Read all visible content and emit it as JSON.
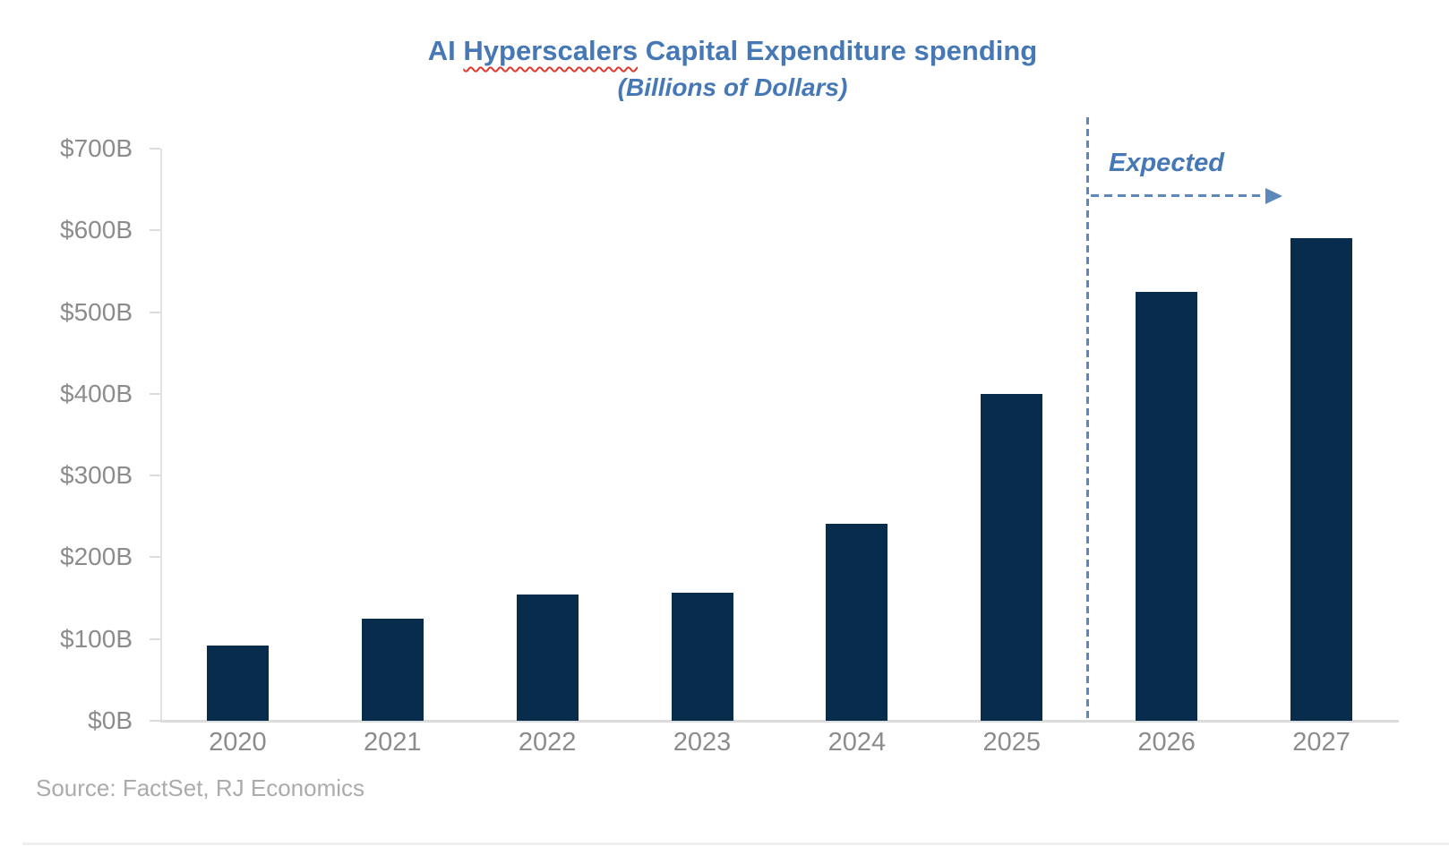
{
  "header": {
    "title_prefix": "AI ",
    "title_misspelled_word": "Hyperscalers",
    "title_suffix": " Capital Expenditure spending",
    "subtitle": "(Billions of Dollars)"
  },
  "annotation": {
    "expected_label": "Expected"
  },
  "footer": {
    "source_text": "Source: FactSet, RJ Economics"
  },
  "colors": {
    "bar": "#082c4c",
    "title_blue": "#4678b6",
    "dashed_blue": "#5c88bb",
    "axis_gray": "#dcdcdc",
    "tick_text_gray": "#8c8c8c",
    "source_gray": "#ababab",
    "squiggle_red": "#e03a2e"
  },
  "chart_data": {
    "type": "bar",
    "title": "AI Hyperscalers Capital Expenditure spending",
    "subtitle": "(Billions of Dollars)",
    "xlabel": "",
    "ylabel": "",
    "unit": "billions of dollars",
    "categories": [
      "2020",
      "2021",
      "2022",
      "2023",
      "2024",
      "2025",
      "2026",
      "2027"
    ],
    "values": [
      92,
      125,
      155,
      157,
      241,
      400,
      525,
      590
    ],
    "ylim": [
      0,
      700
    ],
    "y_tick_step": 100,
    "y_tick_labels": [
      "$0B",
      "$100B",
      "$200B",
      "$300B",
      "$400B",
      "$500B",
      "$600B",
      "$700B"
    ],
    "grid": false,
    "legend": "none",
    "annotations": [
      {
        "type": "dashed-vertical-divider",
        "between_categories": [
          "2025",
          "2026"
        ],
        "label": "Expected",
        "label_style": "italic",
        "arrow": "dashed-right-arrow",
        "applies_to": [
          "2026",
          "2027"
        ]
      }
    ]
  }
}
